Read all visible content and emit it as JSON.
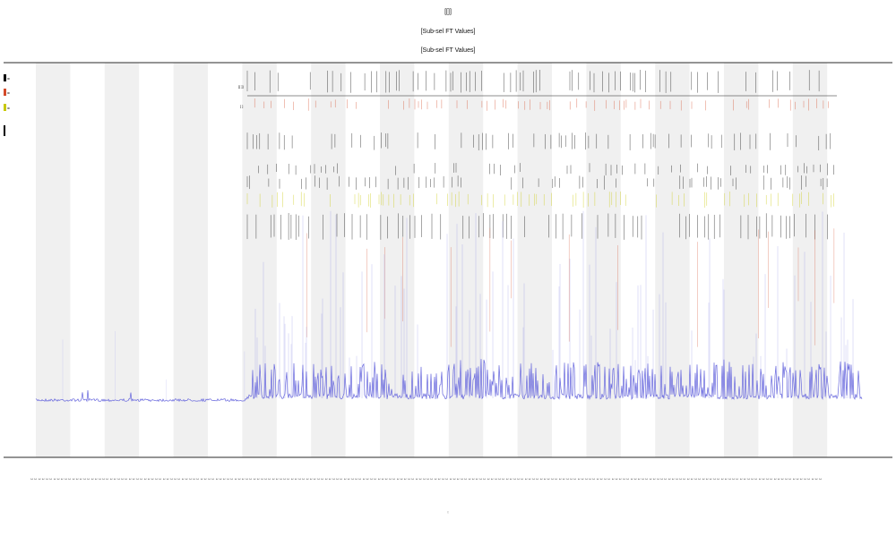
{
  "chart_data": {
    "type": "line",
    "title_lines": [
      "[[]]",
      "[Sub-sel FT Values]",
      "[Sub-sel FT Values]"
    ],
    "xlabel": "",
    "ylabel": "",
    "grid": false,
    "bands": "alternating grey/white vertical bands",
    "legend": {
      "placement": "top-left",
      "entries": [
        {
          "label": "=",
          "color": "#000000"
        },
        {
          "label": "=",
          "color": "#d44a2a"
        },
        {
          "label": "=",
          "color": "#c8c800"
        },
        {
          "label": "",
          "color": "#000000"
        }
      ]
    },
    "row_labels": [
      "[[ ]]",
      "[ ]"
    ],
    "main_series": {
      "name": "",
      "color": "#6666dd",
      "baseline_quiet": 0.04,
      "baseline_active": 0.06,
      "active_from_fraction": 0.25
    },
    "event_rows": [
      {
        "name": "",
        "color": "#000000"
      },
      {
        "name": "",
        "color": "#d44a2a"
      },
      {
        "name": "",
        "color": "#000000"
      },
      {
        "name": "",
        "color": "#000000"
      },
      {
        "name": "",
        "color": "#000000"
      },
      {
        "name": "",
        "color": "#c8c800"
      },
      {
        "name": "",
        "color": "#000000"
      }
    ],
    "n_bands": 24,
    "n_x_ticks": 210,
    "x_tick_label": "1",
    "xaxis_bottom_label": "["
  },
  "colors": {
    "band": "#f0f0f0",
    "axis": "#555555",
    "series": "#6666dd",
    "event_red": "#d44a2a",
    "event_yellow": "#c8c800",
    "event_black": "#000000"
  }
}
